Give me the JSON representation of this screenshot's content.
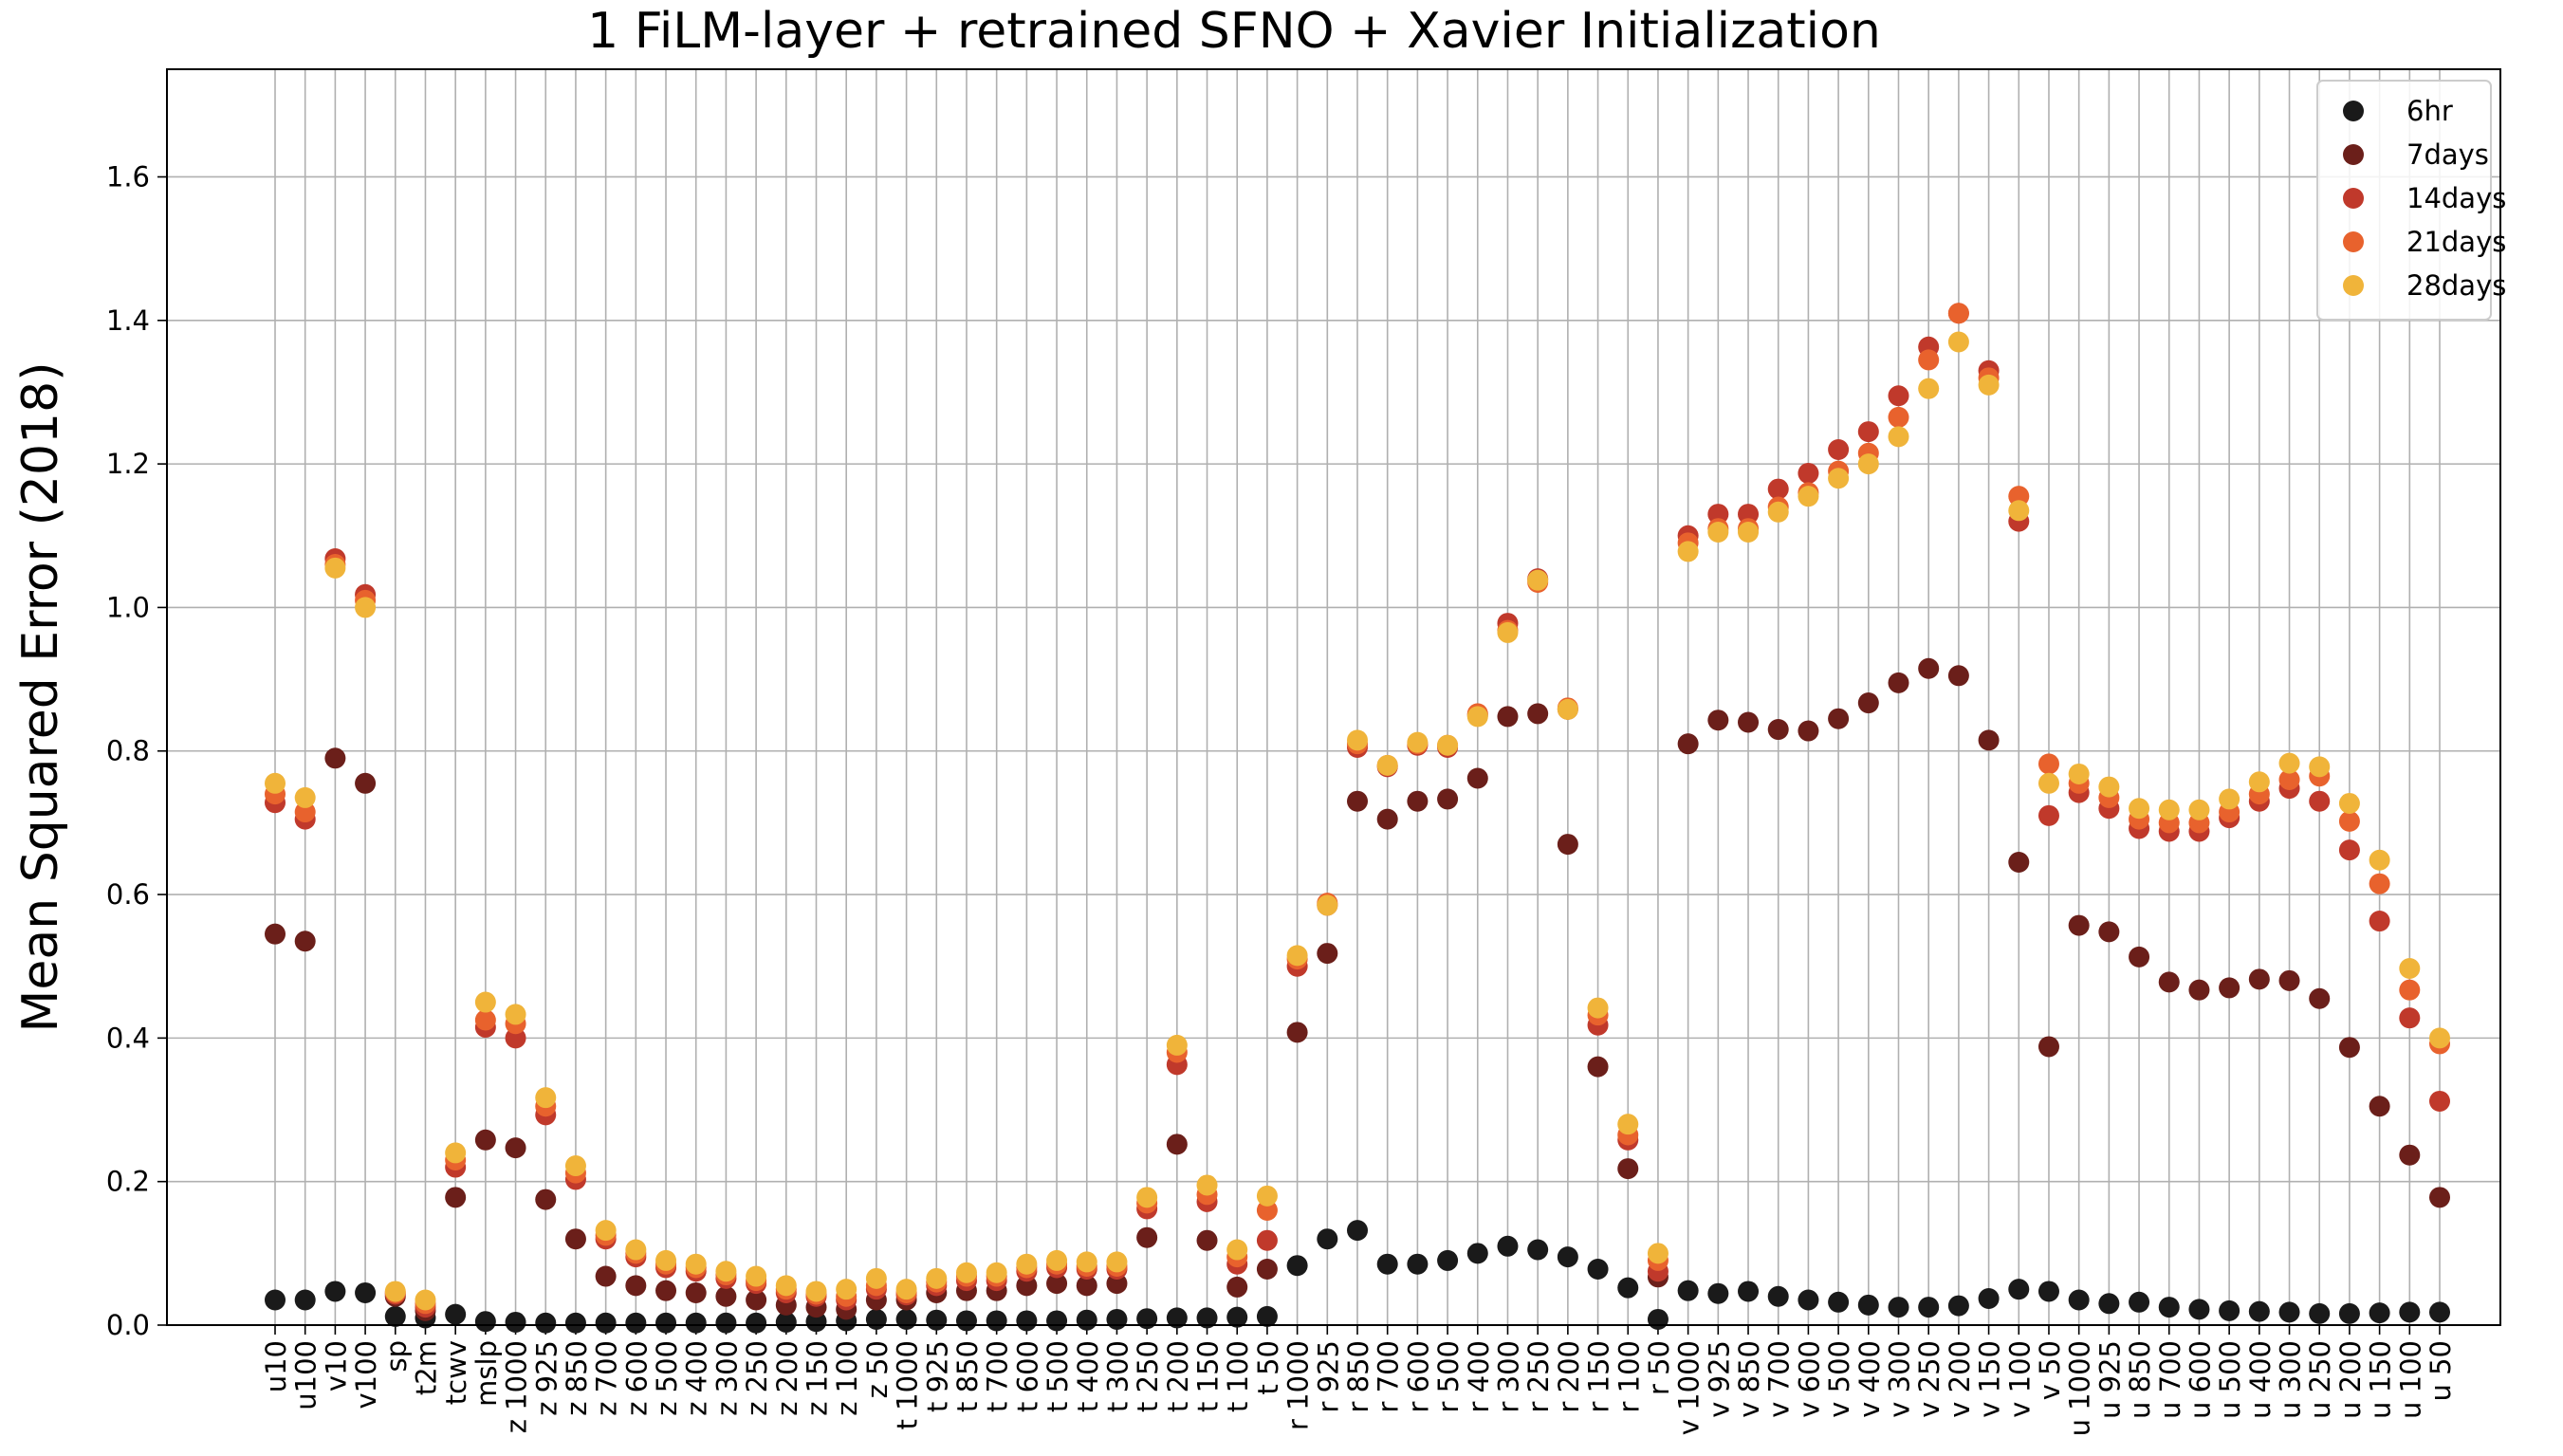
{
  "chart_data": {
    "type": "scatter",
    "title": "1 FiLM-layer + retrained SFNO + Xavier Initialization",
    "ylabel": "Mean Squared Error (2018)",
    "xlabel": "",
    "ylim": [
      0,
      1.75
    ],
    "yticks": [
      "0.0",
      "0.2",
      "0.4",
      "0.6",
      "0.8",
      "1.0",
      "1.2",
      "1.4",
      "1.6"
    ],
    "grid": true,
    "legend_position": "top-right",
    "categories": [
      "u10",
      "u100",
      "v10",
      "v100",
      "sp",
      "t2m",
      "tcwv",
      "mslp",
      "z 1000",
      "z 925",
      "z 850",
      "z 700",
      "z 600",
      "z 500",
      "z 400",
      "z 300",
      "z 250",
      "z 200",
      "z 150",
      "z 100",
      "z 50",
      "t 1000",
      "t 925",
      "t 850",
      "t 700",
      "t 600",
      "t 500",
      "t 400",
      "t 300",
      "t 250",
      "t 200",
      "t 150",
      "t 100",
      "t 50",
      "r 1000",
      "r 925",
      "r 850",
      "r 700",
      "r 600",
      "r 500",
      "r 400",
      "r 300",
      "r 250",
      "r 200",
      "r 150",
      "r 100",
      "r 50",
      "v 1000",
      "v 925",
      "v 850",
      "v 700",
      "v 600",
      "v 500",
      "v 400",
      "v 300",
      "v 250",
      "v 200",
      "v 150",
      "v 100",
      "v 50",
      "u 1000",
      "u 925",
      "u 850",
      "u 700",
      "u 600",
      "u 500",
      "u 400",
      "u 300",
      "u 250",
      "u 200",
      "u 150",
      "u 100",
      "u 50"
    ],
    "series": [
      {
        "name": "6hr",
        "color": "#1a1a1a",
        "values": [
          0.035,
          0.035,
          0.047,
          0.045,
          0.012,
          0.01,
          0.015,
          0.005,
          0.004,
          0.003,
          0.003,
          0.003,
          0.003,
          0.003,
          0.003,
          0.003,
          0.003,
          0.004,
          0.005,
          0.006,
          0.008,
          0.008,
          0.007,
          0.006,
          0.006,
          0.006,
          0.006,
          0.007,
          0.008,
          0.009,
          0.01,
          0.01,
          0.011,
          0.012,
          0.083,
          0.12,
          0.132,
          0.085,
          0.085,
          0.09,
          0.1,
          0.11,
          0.105,
          0.095,
          0.078,
          0.052,
          0.008,
          0.048,
          0.044,
          0.047,
          0.04,
          0.035,
          0.032,
          0.028,
          0.025,
          0.025,
          0.027,
          0.037,
          0.05,
          0.047,
          0.035,
          0.03,
          0.032,
          0.025,
          0.022,
          0.02,
          0.019,
          0.018,
          0.016,
          0.016,
          0.017,
          0.018,
          0.018
        ]
      },
      {
        "name": "7days",
        "color": "#6b1f1a",
        "values": [
          0.545,
          0.535,
          0.79,
          0.755,
          0.04,
          0.02,
          0.178,
          0.258,
          0.247,
          0.175,
          0.12,
          0.068,
          0.055,
          0.048,
          0.045,
          0.04,
          0.035,
          0.028,
          0.025,
          0.022,
          0.035,
          0.035,
          0.045,
          0.048,
          0.048,
          0.055,
          0.058,
          0.055,
          0.058,
          0.122,
          0.252,
          0.118,
          0.053,
          0.078,
          0.408,
          0.518,
          0.73,
          0.705,
          0.73,
          0.733,
          0.762,
          0.848,
          0.852,
          0.67,
          0.36,
          0.218,
          0.067,
          0.81,
          0.843,
          0.84,
          0.83,
          0.828,
          0.845,
          0.867,
          0.895,
          0.915,
          0.905,
          0.815,
          0.645,
          0.388,
          0.557,
          0.548,
          0.513,
          0.478,
          0.467,
          0.47,
          0.482,
          0.48,
          0.455,
          0.387,
          0.305,
          0.237,
          0.178
        ]
      },
      {
        "name": "14days",
        "color": "#c0392b",
        "values": [
          0.728,
          0.705,
          1.068,
          1.018,
          0.043,
          0.025,
          0.22,
          0.415,
          0.4,
          0.293,
          0.203,
          0.12,
          0.095,
          0.08,
          0.075,
          0.065,
          0.058,
          0.045,
          0.04,
          0.035,
          0.05,
          0.042,
          0.055,
          0.062,
          0.062,
          0.075,
          0.08,
          0.078,
          0.078,
          0.162,
          0.363,
          0.172,
          0.085,
          0.118,
          0.5,
          0.585,
          0.805,
          0.778,
          0.808,
          0.805,
          0.85,
          0.978,
          1.04,
          0.858,
          0.418,
          0.258,
          0.075,
          1.1,
          1.13,
          1.13,
          1.165,
          1.187,
          1.22,
          1.245,
          1.295,
          1.363,
          1.41,
          1.33,
          1.12,
          0.71,
          0.742,
          0.72,
          0.692,
          0.688,
          0.688,
          0.707,
          0.73,
          0.748,
          0.73,
          0.662,
          0.563,
          0.428,
          0.312
        ]
      },
      {
        "name": "21days",
        "color": "#e8622d",
        "values": [
          0.74,
          0.715,
          1.06,
          1.01,
          0.045,
          0.03,
          0.23,
          0.425,
          0.42,
          0.305,
          0.212,
          0.125,
          0.1,
          0.085,
          0.08,
          0.07,
          0.062,
          0.05,
          0.043,
          0.04,
          0.055,
          0.045,
          0.06,
          0.068,
          0.068,
          0.08,
          0.085,
          0.082,
          0.082,
          0.17,
          0.38,
          0.182,
          0.095,
          0.16,
          0.51,
          0.588,
          0.81,
          0.78,
          0.81,
          0.808,
          0.852,
          0.968,
          1.035,
          0.86,
          0.432,
          0.265,
          0.09,
          1.09,
          1.11,
          1.11,
          1.14,
          1.16,
          1.19,
          1.215,
          1.265,
          1.345,
          1.41,
          1.32,
          1.155,
          0.782,
          0.755,
          0.735,
          0.705,
          0.7,
          0.7,
          0.715,
          0.74,
          0.76,
          0.765,
          0.702,
          0.615,
          0.467,
          0.392
        ]
      },
      {
        "name": "28days",
        "color": "#f0b43a",
        "values": [
          0.755,
          0.735,
          1.055,
          1.0,
          0.047,
          0.035,
          0.24,
          0.45,
          0.433,
          0.317,
          0.222,
          0.132,
          0.105,
          0.09,
          0.085,
          0.075,
          0.068,
          0.055,
          0.047,
          0.05,
          0.065,
          0.05,
          0.065,
          0.073,
          0.073,
          0.085,
          0.09,
          0.088,
          0.088,
          0.178,
          0.39,
          0.195,
          0.105,
          0.18,
          0.515,
          0.585,
          0.815,
          0.78,
          0.812,
          0.808,
          0.848,
          0.965,
          1.038,
          0.858,
          0.442,
          0.28,
          0.1,
          1.078,
          1.105,
          1.105,
          1.133,
          1.155,
          1.18,
          1.2,
          1.238,
          1.305,
          1.37,
          1.31,
          1.135,
          0.755,
          0.768,
          0.75,
          0.72,
          0.718,
          0.718,
          0.733,
          0.757,
          0.783,
          0.778,
          0.727,
          0.648,
          0.497,
          0.4
        ]
      }
    ]
  }
}
